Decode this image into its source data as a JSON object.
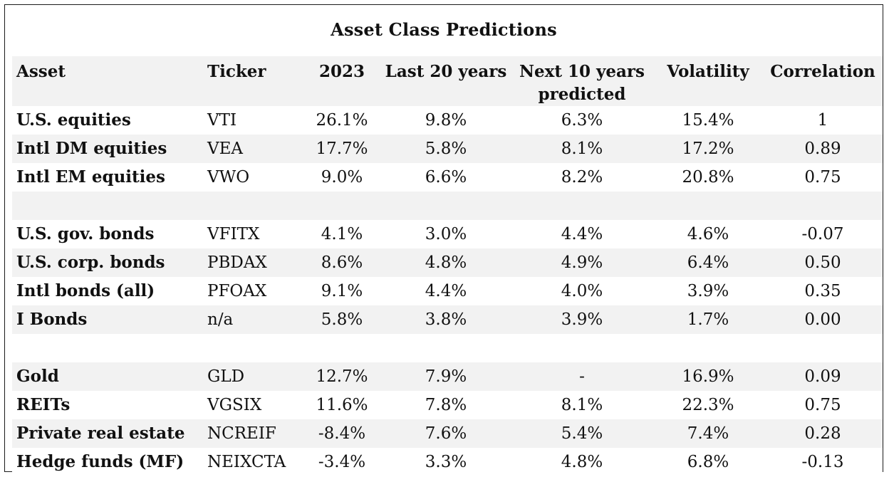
{
  "title": "Asset Class Predictions",
  "headers": {
    "asset": "Asset",
    "ticker": "Ticker",
    "y2023": "2023",
    "last20": "Last 20 years",
    "next10_line1": "Next 10 years",
    "next10_line2": "predicted",
    "volatility": "Volatility",
    "correlation": "Correlation"
  },
  "rows": [
    {
      "asset": "U.S. equities",
      "ticker": "VTI",
      "y2023": "26.1%",
      "last20": "9.8%",
      "next10": "6.3%",
      "volatility": "15.4%",
      "correlation": "1"
    },
    {
      "asset": "Intl DM equities",
      "ticker": "VEA",
      "y2023": "17.7%",
      "last20": "5.8%",
      "next10": "8.1%",
      "volatility": "17.2%",
      "correlation": "0.89"
    },
    {
      "asset": "Intl EM equities",
      "ticker": "VWO",
      "y2023": "9.0%",
      "last20": "6.6%",
      "next10": "8.2%",
      "volatility": "20.8%",
      "correlation": "0.75"
    },
    {
      "asset": "",
      "ticker": "",
      "y2023": "",
      "last20": "",
      "next10": "",
      "volatility": "",
      "correlation": ""
    },
    {
      "asset": "U.S. gov. bonds",
      "ticker": "VFITX",
      "y2023": "4.1%",
      "last20": "3.0%",
      "next10": "4.4%",
      "volatility": "4.6%",
      "correlation": "-0.07"
    },
    {
      "asset": "U.S. corp. bonds",
      "ticker": "PBDAX",
      "y2023": "8.6%",
      "last20": "4.8%",
      "next10": "4.9%",
      "volatility": "6.4%",
      "correlation": "0.50"
    },
    {
      "asset": "Intl bonds (all)",
      "ticker": "PFOAX",
      "y2023": "9.1%",
      "last20": "4.4%",
      "next10": "4.0%",
      "volatility": "3.9%",
      "correlation": "0.35"
    },
    {
      "asset": "I Bonds",
      "ticker": "n/a",
      "y2023": "5.8%",
      "last20": "3.8%",
      "next10": "3.9%",
      "volatility": "1.7%",
      "correlation": "0.00"
    },
    {
      "asset": "",
      "ticker": "",
      "y2023": "",
      "last20": "",
      "next10": "",
      "volatility": "",
      "correlation": ""
    },
    {
      "asset": "Gold",
      "ticker": "GLD",
      "y2023": "12.7%",
      "last20": "7.9%",
      "next10": "-",
      "volatility": "16.9%",
      "correlation": "0.09"
    },
    {
      "asset": "REITs",
      "ticker": "VGSIX",
      "y2023": "11.6%",
      "last20": "7.8%",
      "next10": "8.1%",
      "volatility": "22.3%",
      "correlation": "0.75"
    },
    {
      "asset": "Private real estate",
      "ticker": "NCREIF",
      "y2023": "-8.4%",
      "last20": "7.6%",
      "next10": "5.4%",
      "volatility": "7.4%",
      "correlation": "0.28"
    },
    {
      "asset": "Hedge funds (MF)",
      "ticker": "NEIXCTA",
      "y2023": "-3.4%",
      "last20": "3.3%",
      "next10": "4.8%",
      "volatility": "6.8%",
      "correlation": "-0.13"
    }
  ]
}
